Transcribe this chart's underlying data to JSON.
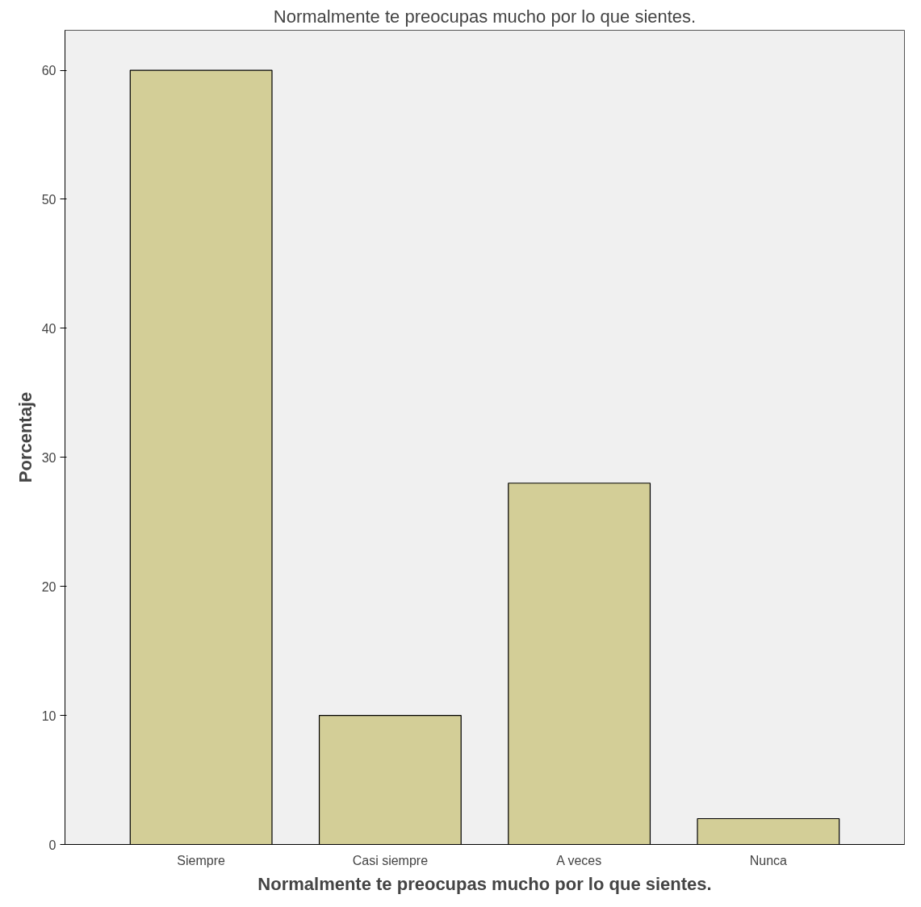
{
  "chart_data": {
    "type": "bar",
    "title": "Normalmente te preocupas mucho por lo que sientes.",
    "xlabel": "Normalmente te preocupas mucho por lo que sientes.",
    "ylabel": "Porcentaje",
    "categories": [
      "Siempre",
      "Casi siempre",
      "A veces",
      "Nunca"
    ],
    "values": [
      60,
      10,
      28,
      2
    ],
    "color": "#d3ce97",
    "ylim": [
      0,
      63.1
    ],
    "yticks": [
      0,
      10,
      20,
      30,
      40,
      50,
      60
    ],
    "grid": false
  }
}
